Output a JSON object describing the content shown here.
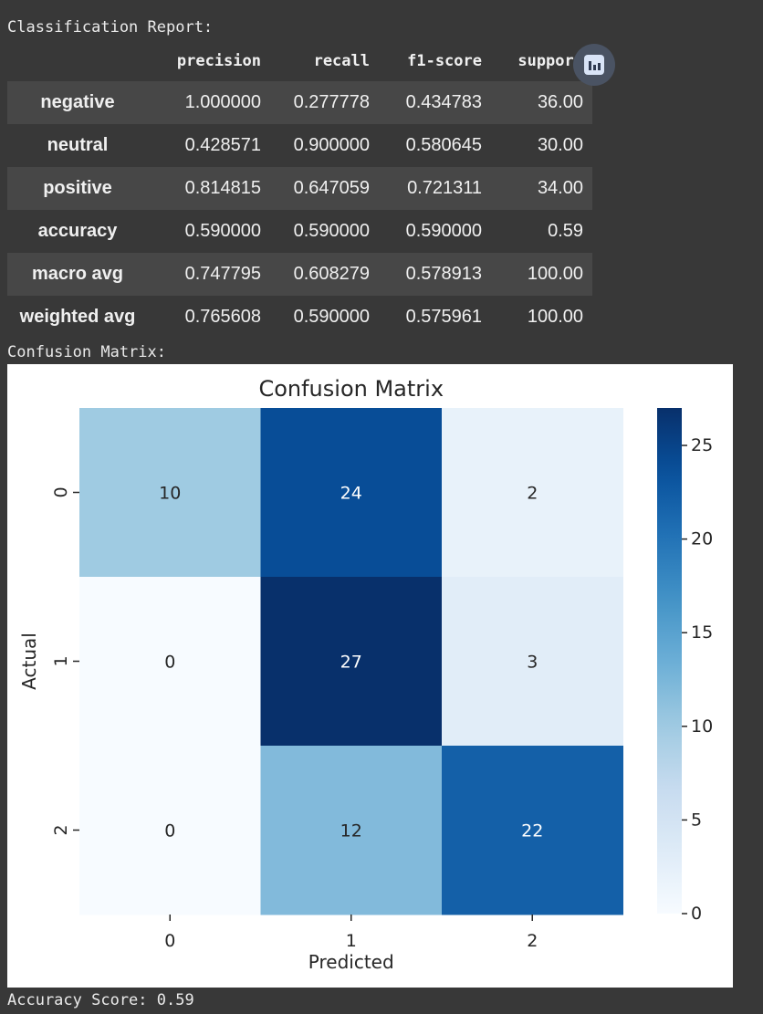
{
  "report_label": "Classification Report:",
  "report": {
    "columns": [
      "precision",
      "recall",
      "f1-score",
      "support"
    ],
    "rows": [
      {
        "name": "negative",
        "values": [
          "1.000000",
          "0.277778",
          "0.434783",
          "36.00"
        ]
      },
      {
        "name": "neutral",
        "values": [
          "0.428571",
          "0.900000",
          "0.580645",
          "30.00"
        ]
      },
      {
        "name": "positive",
        "values": [
          "0.814815",
          "0.647059",
          "0.721311",
          "34.00"
        ]
      },
      {
        "name": "accuracy",
        "values": [
          "0.590000",
          "0.590000",
          "0.590000",
          "0.59"
        ]
      },
      {
        "name": "macro avg",
        "values": [
          "0.747795",
          "0.608279",
          "0.578913",
          "100.00"
        ]
      },
      {
        "name": "weighted avg",
        "values": [
          "0.765608",
          "0.590000",
          "0.575961",
          "100.00"
        ]
      }
    ]
  },
  "chart_button_icon": "bar-chart-icon",
  "confusion_label": "Confusion Matrix:",
  "chart_data": {
    "type": "heatmap",
    "title": "Confusion Matrix",
    "xlabel": "Predicted",
    "ylabel": "Actual",
    "x_ticks": [
      "0",
      "1",
      "2"
    ],
    "y_ticks": [
      "0",
      "1",
      "2"
    ],
    "matrix": [
      [
        10,
        24,
        2
      ],
      [
        0,
        27,
        3
      ],
      [
        0,
        12,
        22
      ]
    ],
    "colormap": "Blues",
    "colorbar": {
      "min": 0,
      "max": 27,
      "ticks": [
        0,
        5,
        10,
        15,
        20,
        25
      ]
    }
  },
  "accuracy_label": "Accuracy Score: 0.59"
}
